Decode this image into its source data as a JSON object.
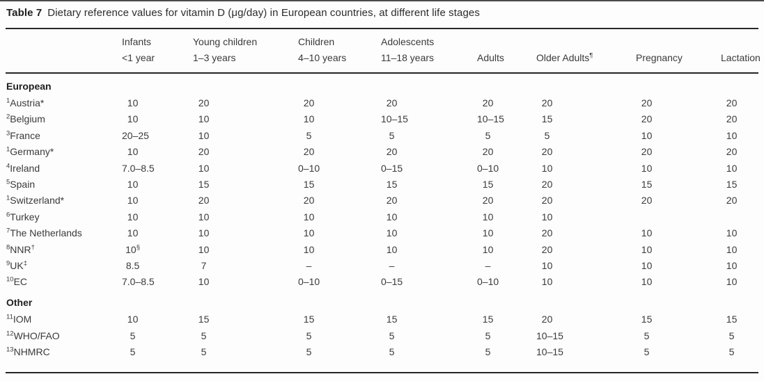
{
  "caption": {
    "label": "Table 7",
    "text": "Dietary reference values for vitamin D (μg/day) in European countries, at different life stages"
  },
  "table": {
    "columns": [
      {
        "line1": "Infants",
        "line2": "<1 year"
      },
      {
        "line1": "Young children",
        "line2": "1–3 years"
      },
      {
        "line1": "Children",
        "line2": "4–10 years"
      },
      {
        "line1": "Adolescents",
        "line2": "11–18 years"
      },
      {
        "line1": "",
        "line2": "Adults"
      },
      {
        "line1": "",
        "line2": "Older Adults",
        "sup": "¶"
      },
      {
        "line1": "",
        "line2": "Pregnancy"
      },
      {
        "line1": "",
        "line2": "Lactation"
      }
    ],
    "sections": [
      {
        "heading": "European",
        "rows": [
          {
            "ref": "1",
            "name": "Austria*",
            "values": [
              "10",
              "20",
              "20",
              "20",
              "20",
              "20",
              "20",
              "20"
            ]
          },
          {
            "ref": "2",
            "name": "Belgium",
            "values": [
              "10",
              "10",
              "10",
              "10–15",
              "10–15",
              "15",
              "20",
              "20"
            ]
          },
          {
            "ref": "3",
            "name": "France",
            "values": [
              "20–25",
              "10",
              "5",
              "5",
              "5",
              "5",
              "10",
              "10"
            ]
          },
          {
            "ref": "1",
            "name": "Germany*",
            "values": [
              "10",
              "20",
              "20",
              "20",
              "20",
              "20",
              "20",
              "20"
            ]
          },
          {
            "ref": "4",
            "name": "Ireland",
            "values": [
              "7.0–8.5",
              "10",
              "0–10",
              "0–15",
              "0–10",
              "10",
              "10",
              "10"
            ]
          },
          {
            "ref": "5",
            "name": "Spain",
            "values": [
              "10",
              "15",
              "15",
              "15",
              "15",
              "20",
              "15",
              "15"
            ]
          },
          {
            "ref": "1",
            "name": "Switzerland*",
            "values": [
              "10",
              "20",
              "20",
              "20",
              "20",
              "20",
              "20",
              "20"
            ]
          },
          {
            "ref": "6",
            "name": "Turkey",
            "values": [
              "10",
              "10",
              "10",
              "10",
              "10",
              "10",
              "",
              ""
            ]
          },
          {
            "ref": "7",
            "name": "The Netherlands",
            "values": [
              "10",
              "10",
              "10",
              "10",
              "10",
              "20",
              "10",
              "10"
            ]
          },
          {
            "ref": "8",
            "name": "NNR",
            "name_sup": "†",
            "values": [
              "10§",
              "10",
              "10",
              "10",
              "10",
              "20",
              "10",
              "10"
            ]
          },
          {
            "ref": "9",
            "name": "UK",
            "name_sup": "‡",
            "values": [
              "8.5",
              "7",
              "–",
              "–",
              "–",
              "10",
              "10",
              "10"
            ]
          },
          {
            "ref": "10",
            "name": "EC",
            "values": [
              "7.0–8.5",
              "10",
              "0–10",
              "0–15",
              "0–10",
              "10",
              "10",
              "10"
            ]
          }
        ]
      },
      {
        "heading": "Other",
        "rows": [
          {
            "ref": "11",
            "name": "IOM",
            "values": [
              "10",
              "15",
              "15",
              "15",
              "15",
              "20",
              "15",
              "15"
            ]
          },
          {
            "ref": "12",
            "name": "WHO/FAO",
            "values": [
              "5",
              "5",
              "5",
              "5",
              "5",
              "10–15",
              "5",
              "5"
            ]
          },
          {
            "ref": "13",
            "name": "NHMRC",
            "values": [
              "5",
              "5",
              "5",
              "5",
              "5",
              "10–15",
              "5",
              "5"
            ]
          }
        ]
      }
    ]
  }
}
